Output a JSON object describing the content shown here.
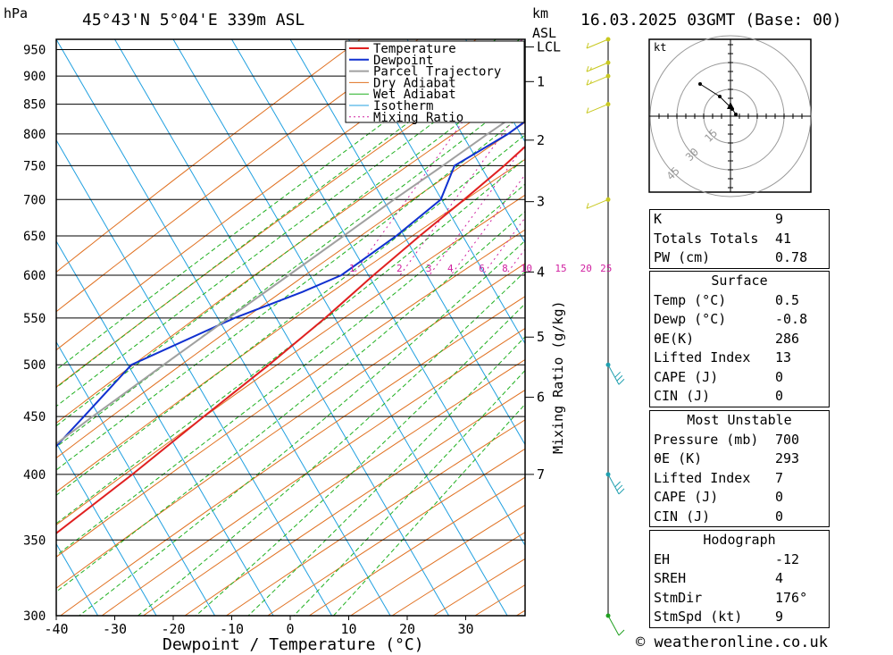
{
  "header": {
    "pressure_unit": "hPa",
    "location": "45°43'N  5°04'E  339m  ASL",
    "km_unit": "km",
    "asl_unit": "ASL",
    "datetime": "16.03.2025  03GMT  (Base: 00)"
  },
  "chart_data": {
    "type": "line",
    "title": "45°43'N  5°04'E  339m  ASL",
    "xlabel": "Dewpoint / Temperature (°C)",
    "ylabel": "hPa",
    "xlim": [
      -40,
      40
    ],
    "ylim": [
      970,
      300
    ],
    "y_scale": "log",
    "skew": true,
    "pressure_ticks": [
      300,
      350,
      400,
      450,
      500,
      550,
      600,
      650,
      700,
      750,
      800,
      850,
      900,
      950
    ],
    "temperature_ticks": [
      -40,
      -30,
      -20,
      -10,
      0,
      10,
      20,
      30
    ],
    "km_ticks": [
      {
        "label": "7",
        "p": 400
      },
      {
        "label": "6",
        "p": 468
      },
      {
        "label": "5",
        "p": 529
      },
      {
        "label": "4",
        "p": 604
      },
      {
        "label": "3",
        "p": 697
      },
      {
        "label": "2",
        "p": 790
      },
      {
        "label": "1",
        "p": 890
      },
      {
        "label": "LCL",
        "p": 955
      }
    ],
    "mixing_ratio_label": "Mixing Ratio (g/kg)",
    "mixing_ratio_values": [
      "1",
      "2",
      "3",
      "4",
      "6",
      "8",
      "10",
      "15",
      "20",
      "25"
    ],
    "legend": [
      "Temperature",
      "Dewpoint",
      "Parcel Trajectory",
      "Dry Adiabat",
      "Wet Adiabat",
      "Isotherm",
      "Mixing Ratio"
    ],
    "legend_position": "top-right",
    "series": [
      {
        "name": "Temperature",
        "color": "#e02020",
        "points": [
          [
            970,
            0.5
          ],
          [
            950,
            1.2
          ],
          [
            900,
            -0.5
          ],
          [
            850,
            -2.5
          ],
          [
            800,
            -5.2
          ],
          [
            750,
            -8.0
          ],
          [
            700,
            -11.5
          ],
          [
            650,
            -15.5
          ],
          [
            600,
            -19.5
          ],
          [
            550,
            -23.5
          ],
          [
            500,
            -28.5
          ],
          [
            450,
            -34.5
          ],
          [
            400,
            -41.0
          ],
          [
            350,
            -49.0
          ],
          [
            300,
            -56.0
          ]
        ]
      },
      {
        "name": "Dewpoint",
        "color": "#1030d0",
        "points": [
          [
            970,
            -0.8
          ],
          [
            950,
            -2.0
          ],
          [
            900,
            -4.0
          ],
          [
            850,
            -6.5
          ],
          [
            800,
            -10.5
          ],
          [
            750,
            -16.5
          ],
          [
            700,
            -15.5
          ],
          [
            650,
            -19.5
          ],
          [
            600,
            -25.0
          ],
          [
            580,
            -30.0
          ],
          [
            550,
            -39.0
          ],
          [
            500,
            -52.0
          ],
          [
            450,
            -55.0
          ],
          [
            400,
            -58.5
          ],
          [
            350,
            -65.0
          ],
          [
            300,
            -75.0
          ]
        ]
      },
      {
        "name": "Parcel Trajectory",
        "color": "#a0a0a0",
        "points": [
          [
            970,
            0.5
          ],
          [
            955,
            -0.6
          ],
          [
            900,
            -5.0
          ],
          [
            850,
            -9.5
          ],
          [
            800,
            -14.0
          ],
          [
            750,
            -18.5
          ],
          [
            700,
            -23.5
          ],
          [
            650,
            -28.5
          ],
          [
            600,
            -34.0
          ],
          [
            550,
            -40.0
          ],
          [
            500,
            -46.5
          ],
          [
            450,
            -53.5
          ],
          [
            400,
            -61.0
          ],
          [
            350,
            -70.0
          ],
          [
            300,
            -79.0
          ]
        ]
      }
    ],
    "wind_barbs": [
      {
        "p": 300,
        "speed": 10,
        "color": "#20a020"
      },
      {
        "p": 400,
        "speed": 30,
        "color": "#20a0b0"
      },
      {
        "p": 500,
        "speed": 30,
        "color": "#20a0b0"
      },
      {
        "p": 700,
        "speed": 10,
        "color": "#c8c820"
      },
      {
        "p": 850,
        "speed": 10,
        "color": "#c8c820"
      },
      {
        "p": 900,
        "speed": 15,
        "color": "#c8c820"
      },
      {
        "p": 925,
        "speed": 15,
        "color": "#c8c820"
      },
      {
        "p": 970,
        "speed": 10,
        "color": "#c8c820"
      }
    ]
  },
  "hodograph": {
    "unit": "kt",
    "ring_labels": [
      "15",
      "30",
      "45"
    ]
  },
  "indices": {
    "top": [
      {
        "label": "K",
        "value": "9"
      },
      {
        "label": "Totals Totals",
        "value": "41"
      },
      {
        "label": "PW (cm)",
        "value": "0.78"
      }
    ],
    "surface_title": "Surface",
    "surface": [
      {
        "label": "Temp (°C)",
        "value": "0.5"
      },
      {
        "label": "Dewp (°C)",
        "value": "-0.8"
      },
      {
        "label": "θE(K)",
        "value": "286"
      },
      {
        "label": "Lifted Index",
        "value": "13"
      },
      {
        "label": "CAPE (J)",
        "value": "0"
      },
      {
        "label": "CIN (J)",
        "value": "0"
      }
    ],
    "mu_title": "Most Unstable",
    "mu": [
      {
        "label": "Pressure (mb)",
        "value": "700"
      },
      {
        "label": "θE (K)",
        "value": "293"
      },
      {
        "label": "Lifted Index",
        "value": "7"
      },
      {
        "label": "CAPE (J)",
        "value": "0"
      },
      {
        "label": "CIN (J)",
        "value": "0"
      }
    ],
    "hodo_title": "Hodograph",
    "hodo": [
      {
        "label": "EH",
        "value": "-12"
      },
      {
        "label": "SREH",
        "value": "4"
      },
      {
        "label": "StmDir",
        "value": "176°"
      },
      {
        "label": "StmSpd (kt)",
        "value": "9"
      }
    ]
  },
  "footer": "© weatheronline.co.uk",
  "colors": {
    "temperature": "#e02020",
    "dewpoint": "#1030d0",
    "parcel": "#a0a0a0",
    "dry_adiabat": "#e07020",
    "wet_adiabat": "#20b020",
    "isotherm": "#20a0e0",
    "mixing_ratio": "#d020a0"
  }
}
